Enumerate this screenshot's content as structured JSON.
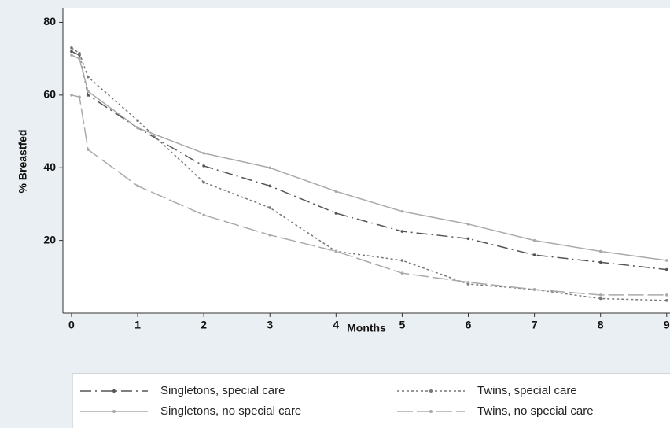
{
  "chart_data": {
    "type": "line",
    "x_label": "Months",
    "y_label": "% Breastfed",
    "x": [
      0,
      0.12,
      0.25,
      1,
      2,
      3,
      4,
      5,
      6,
      7,
      8,
      9
    ],
    "series": [
      {
        "name": "Singletons, special care",
        "color": "#555555",
        "dash": "14 5 2 5",
        "values": [
          72,
          71,
          60,
          51,
          40.5,
          35,
          27.5,
          22.5,
          20.5,
          16,
          14,
          12
        ]
      },
      {
        "name": "Twins, special care",
        "color": "#777777",
        "dash": "3 3",
        "values": [
          73,
          71.5,
          65,
          53,
          36,
          29,
          17,
          14.5,
          8,
          6.5,
          4,
          3.5
        ]
      },
      {
        "name": "Singletons, no special care",
        "color": "#aaaaaa",
        "dash": "",
        "values": [
          71,
          70,
          61,
          51,
          44,
          40,
          33.5,
          28,
          24.5,
          20,
          17,
          14.5
        ]
      },
      {
        "name": "Twins, no special care",
        "color": "#aaaaaa",
        "dash": "20 5",
        "values": [
          60,
          59.5,
          45,
          35,
          27,
          21.5,
          17,
          11,
          8.5,
          6.5,
          5,
          5
        ]
      }
    ],
    "xlim": [
      -0.13,
      9.05
    ],
    "ylim": [
      0,
      84
    ],
    "xticks": [
      0,
      1,
      2,
      3,
      4,
      5,
      6,
      7,
      8,
      9
    ],
    "yticks": [
      20,
      40,
      60,
      80
    ]
  }
}
